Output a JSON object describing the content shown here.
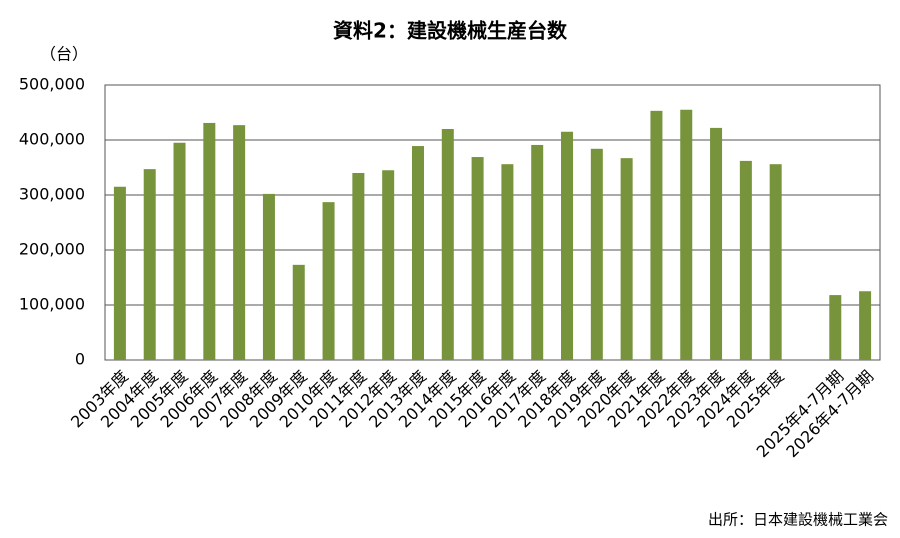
{
  "chart_data": {
    "type": "bar",
    "title": "資料2：建設機械生産台数",
    "y_unit_label": "（台）",
    "source": "出所：日本建設機械工業会",
    "categories": [
      "2003年度",
      "2004年度",
      "2005年度",
      "2006年度",
      "2007年度",
      "2008年度",
      "2009年度",
      "2010年度",
      "2011年度",
      "2012年度",
      "2013年度",
      "2014年度",
      "2015年度",
      "2016年度",
      "2017年度",
      "2018年度",
      "2019年度",
      "2020年度",
      "2021年度",
      "2022年度",
      "2023年度",
      "2024年度",
      "2025年度",
      null,
      "2025年4-7月期",
      "2026年4-7月期"
    ],
    "values": [
      315000,
      347000,
      395000,
      431000,
      427000,
      302000,
      173000,
      287000,
      340000,
      345000,
      389000,
      420000,
      369000,
      356000,
      391000,
      415000,
      384000,
      367000,
      453000,
      455000,
      422000,
      362000,
      356000,
      null,
      118000,
      125000
    ],
    "color": "#77933c",
    "ylim": [
      0,
      500000
    ],
    "yticks": [
      0,
      {
        "value": 100000,
        "label": "100,000"
      },
      {
        "value": 200000,
        "label": "200,000"
      },
      {
        "value": 300000,
        "label": "300,000"
      },
      {
        "value": 400000,
        "label": "400,000"
      },
      {
        "value": 500000,
        "label": "500,000"
      }
    ],
    "grid": true
  }
}
